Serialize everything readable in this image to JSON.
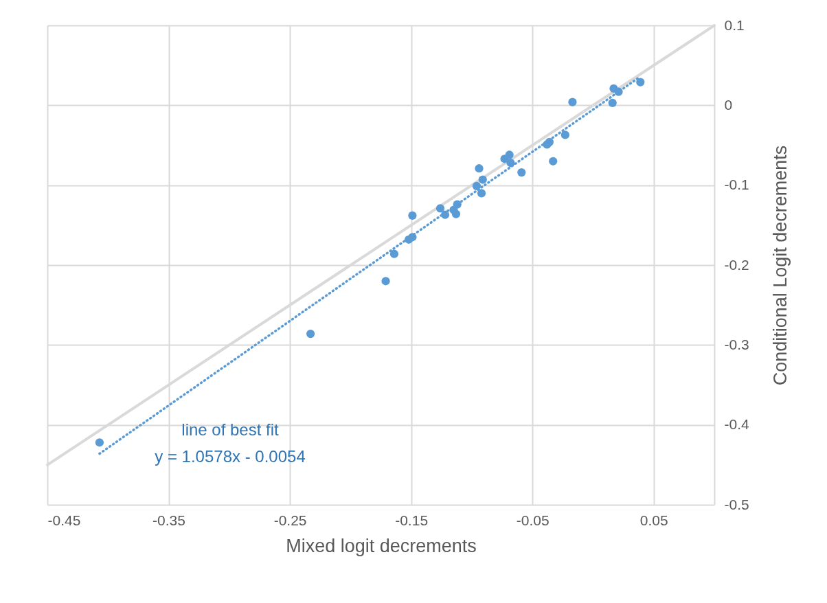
{
  "chart_data": {
    "type": "scatter",
    "xlabel": "Mixed logit decrements",
    "ylabel": "Conditional Logit decrements",
    "xlim": [
      -0.45,
      0.1
    ],
    "ylim": [
      -0.5,
      0.1
    ],
    "xticks": [
      -0.45,
      -0.35,
      -0.25,
      -0.15,
      -0.05,
      0.05
    ],
    "yticks": [
      -0.5,
      -0.4,
      -0.3,
      -0.2,
      -0.1,
      0,
      0.1
    ],
    "grid": true,
    "marker": "circle",
    "series": [
      {
        "type": "line",
        "color": "#d9d9d9",
        "line_style": "solid",
        "marker": "none",
        "x": [
          -0.45,
          0.1
        ],
        "values": [
          -0.45,
          0.1
        ]
      },
      {
        "type": "line",
        "color": "#5b9bd5",
        "line_style": "dotted",
        "marker": "none",
        "x": [
          -0.407,
          0.039
        ],
        "values": [
          -0.436,
          0.036
        ]
      },
      {
        "color": "#5b9bd5",
        "x": [
          -0.017,
          0.017,
          0.021,
          0.016,
          0.039,
          -0.023,
          -0.036,
          -0.038,
          -0.033,
          -0.059,
          -0.069,
          -0.073,
          -0.068,
          -0.094,
          -0.091,
          -0.096,
          -0.092,
          -0.112,
          -0.115,
          -0.113,
          -0.122,
          -0.126,
          -0.149,
          -0.149,
          -0.152,
          -0.164,
          -0.171,
          -0.233,
          -0.407
        ],
        "values": [
          0.004,
          0.021,
          0.017,
          0.003,
          0.029,
          -0.037,
          -0.046,
          -0.049,
          -0.07,
          -0.084,
          -0.062,
          -0.067,
          -0.072,
          -0.079,
          -0.093,
          -0.101,
          -0.11,
          -0.124,
          -0.131,
          -0.136,
          -0.137,
          -0.129,
          -0.138,
          -0.165,
          -0.168,
          -0.186,
          -0.22,
          -0.286,
          -0.422
        ]
      }
    ],
    "annotations": [
      "line of best fit",
      "y = 1.0578x - 0.0054"
    ]
  }
}
